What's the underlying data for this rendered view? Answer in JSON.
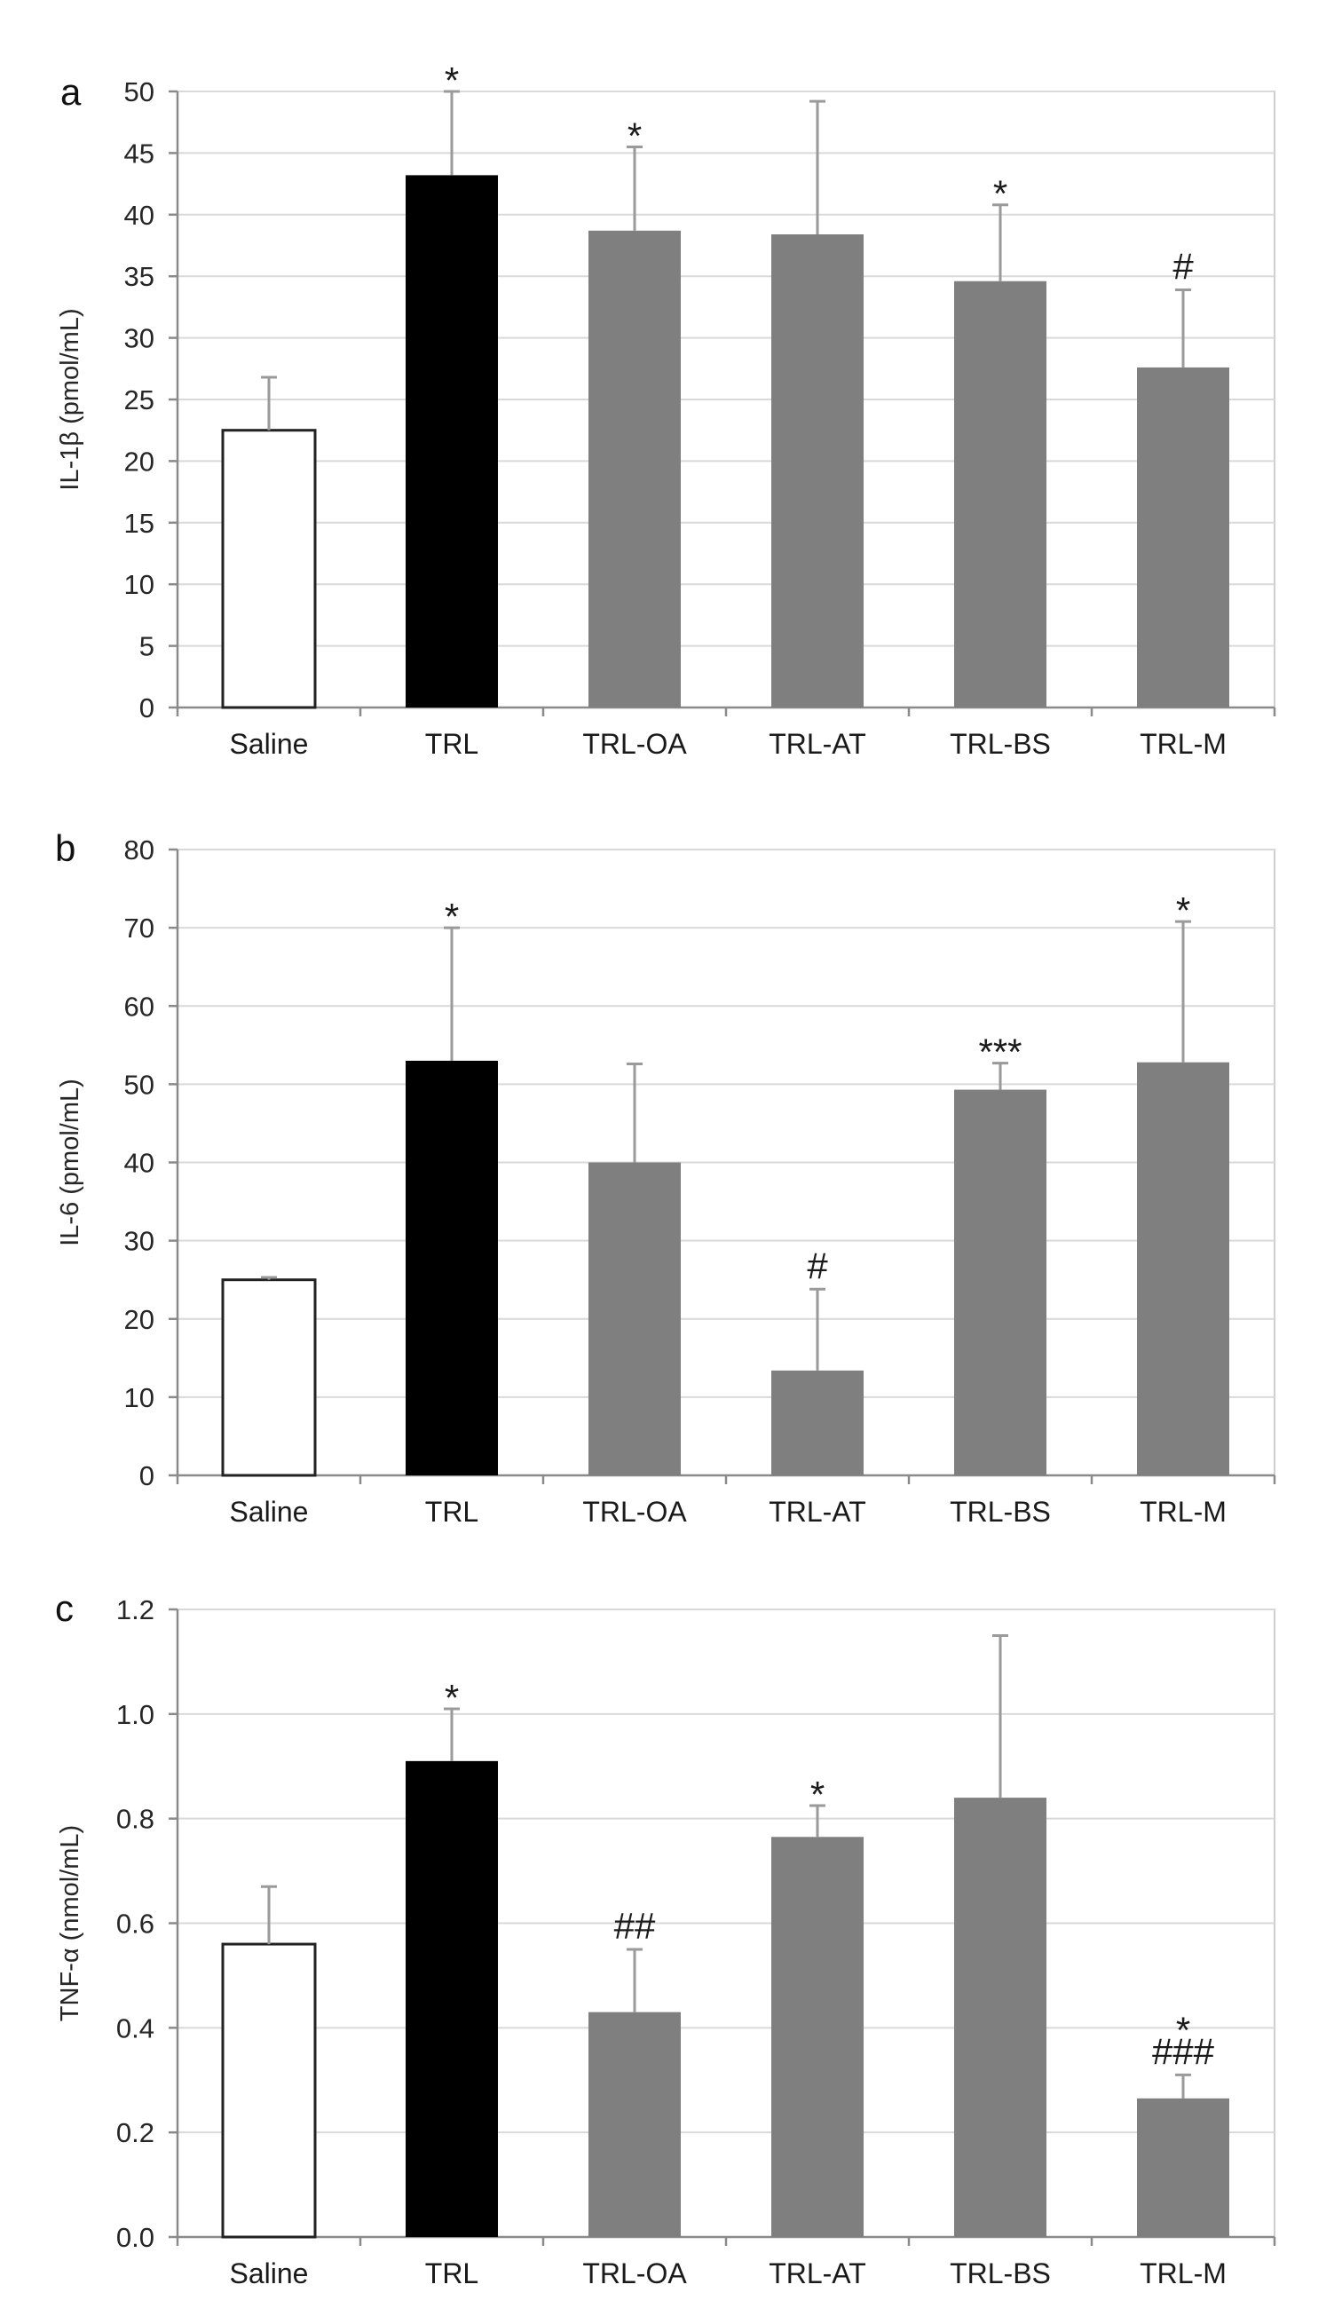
{
  "figure": {
    "colors": {
      "saline": "#ffffff",
      "trl": "#000000",
      "treatment": "#7f7f7f",
      "grid": "#d9d9d9",
      "error_bar": "#9a9a9a"
    }
  },
  "chart_data": [
    {
      "type": "bar",
      "panel": "a",
      "ylabel": "IL-1β (pmol/mL)",
      "xlabel": "",
      "ylim": [
        0,
        50
      ],
      "yticks": [
        0,
        5,
        10,
        15,
        20,
        25,
        30,
        35,
        40,
        45,
        50
      ],
      "ytick_labels": [
        "0",
        "5",
        "10",
        "15",
        "20",
        "25",
        "30",
        "35",
        "40",
        "45",
        "50"
      ],
      "categories": [
        "Saline",
        "TRL",
        "TRL-OA",
        "TRL-AT",
        "TRL-BS",
        "TRL-M"
      ],
      "values": [
        22.5,
        43.2,
        38.7,
        38.4,
        34.6,
        27.6
      ],
      "errors": [
        4.3,
        6.8,
        6.8,
        10.8,
        6.2,
        6.3
      ],
      "annotations": [
        "",
        "*",
        "*",
        "",
        "*",
        "#"
      ],
      "bar_colors": [
        "saline",
        "trl",
        "treatment",
        "treatment",
        "treatment",
        "treatment"
      ],
      "grid": true
    },
    {
      "type": "bar",
      "panel": "b",
      "ylabel": "IL-6 (pmol/mL)",
      "xlabel": "",
      "ylim": [
        0,
        80
      ],
      "yticks": [
        0,
        10,
        20,
        30,
        40,
        50,
        60,
        70,
        80
      ],
      "ytick_labels": [
        "0",
        "10",
        "20",
        "30",
        "40",
        "50",
        "60",
        "70",
        "80"
      ],
      "categories": [
        "Saline",
        "TRL",
        "TRL-OA",
        "TRL-AT",
        "TRL-BS",
        "TRL-M"
      ],
      "values": [
        25.0,
        53.0,
        40.0,
        13.4,
        49.3,
        52.8
      ],
      "errors": [
        0.3,
        17.0,
        12.6,
        10.4,
        3.4,
        18.0
      ],
      "annotations": [
        "",
        "*",
        "",
        "#",
        "***",
        "*"
      ],
      "bar_colors": [
        "saline",
        "trl",
        "treatment",
        "treatment",
        "treatment",
        "treatment"
      ],
      "grid": true
    },
    {
      "type": "bar",
      "panel": "c",
      "ylabel": "TNF-α (nmol/mL)",
      "xlabel": "",
      "ylim": [
        0,
        1.2
      ],
      "yticks": [
        0,
        0.2,
        0.4,
        0.6,
        0.8,
        1.0,
        1.2
      ],
      "ytick_labels": [
        "0.0",
        "0.2",
        "0.4",
        "0.6",
        "0.8",
        "1.0",
        "1.2"
      ],
      "categories": [
        "Saline",
        "TRL",
        "TRL-OA",
        "TRL-AT",
        "TRL-BS",
        "TRL-M"
      ],
      "values": [
        0.56,
        0.91,
        0.43,
        0.765,
        0.84,
        0.265
      ],
      "errors": [
        0.11,
        0.1,
        0.12,
        0.06,
        0.31,
        0.045
      ],
      "annotations": [
        "",
        "*",
        "##",
        "*",
        "",
        "*\n###"
      ],
      "bar_colors": [
        "saline",
        "trl",
        "treatment",
        "treatment",
        "treatment",
        "treatment"
      ],
      "grid": true
    }
  ]
}
